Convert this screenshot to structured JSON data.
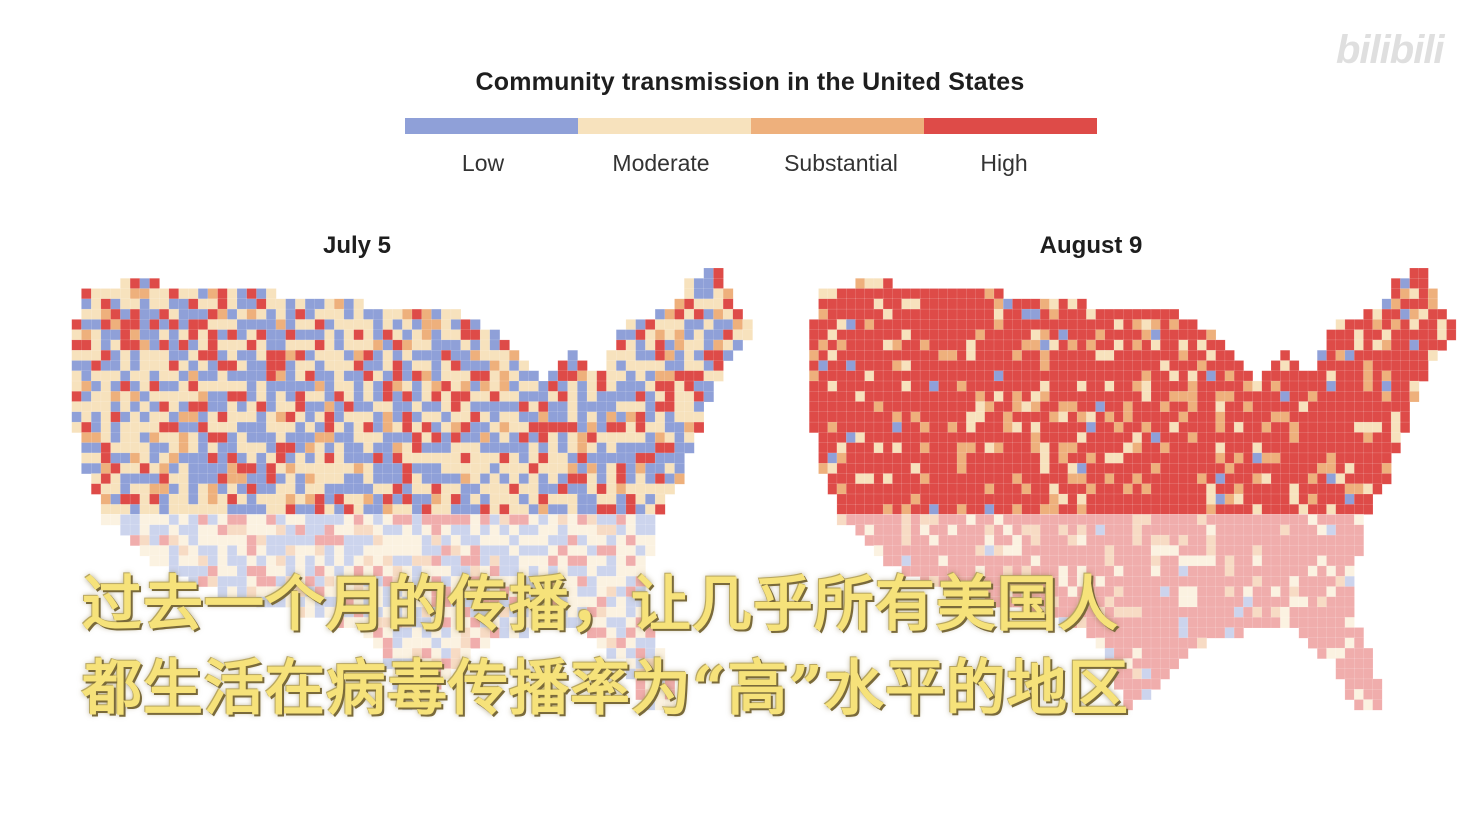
{
  "title": "Community transmission in the United States",
  "legend": {
    "items": [
      {
        "label": "Low",
        "color": "#8fa0d8"
      },
      {
        "label": "Moderate",
        "color": "#f7e2bd"
      },
      {
        "label": "Substantial",
        "color": "#eeb07c"
      },
      {
        "label": "High",
        "color": "#de4b48"
      }
    ]
  },
  "maps": [
    {
      "title": "July 5",
      "shares": {
        "Low": 0.35,
        "Moderate": 0.38,
        "Substantial": 0.09,
        "High": 0.18
      }
    },
    {
      "title": "August 9",
      "shares": {
        "Low": 0.03,
        "Moderate": 0.09,
        "Substantial": 0.1,
        "High": 0.78
      }
    }
  ],
  "subtitles": {
    "line1": "过去一个月的传播，让几乎所有美国人",
    "line2": "都生活在病毒传播率为“高”水平的地区"
  },
  "watermark": "bilibili"
}
